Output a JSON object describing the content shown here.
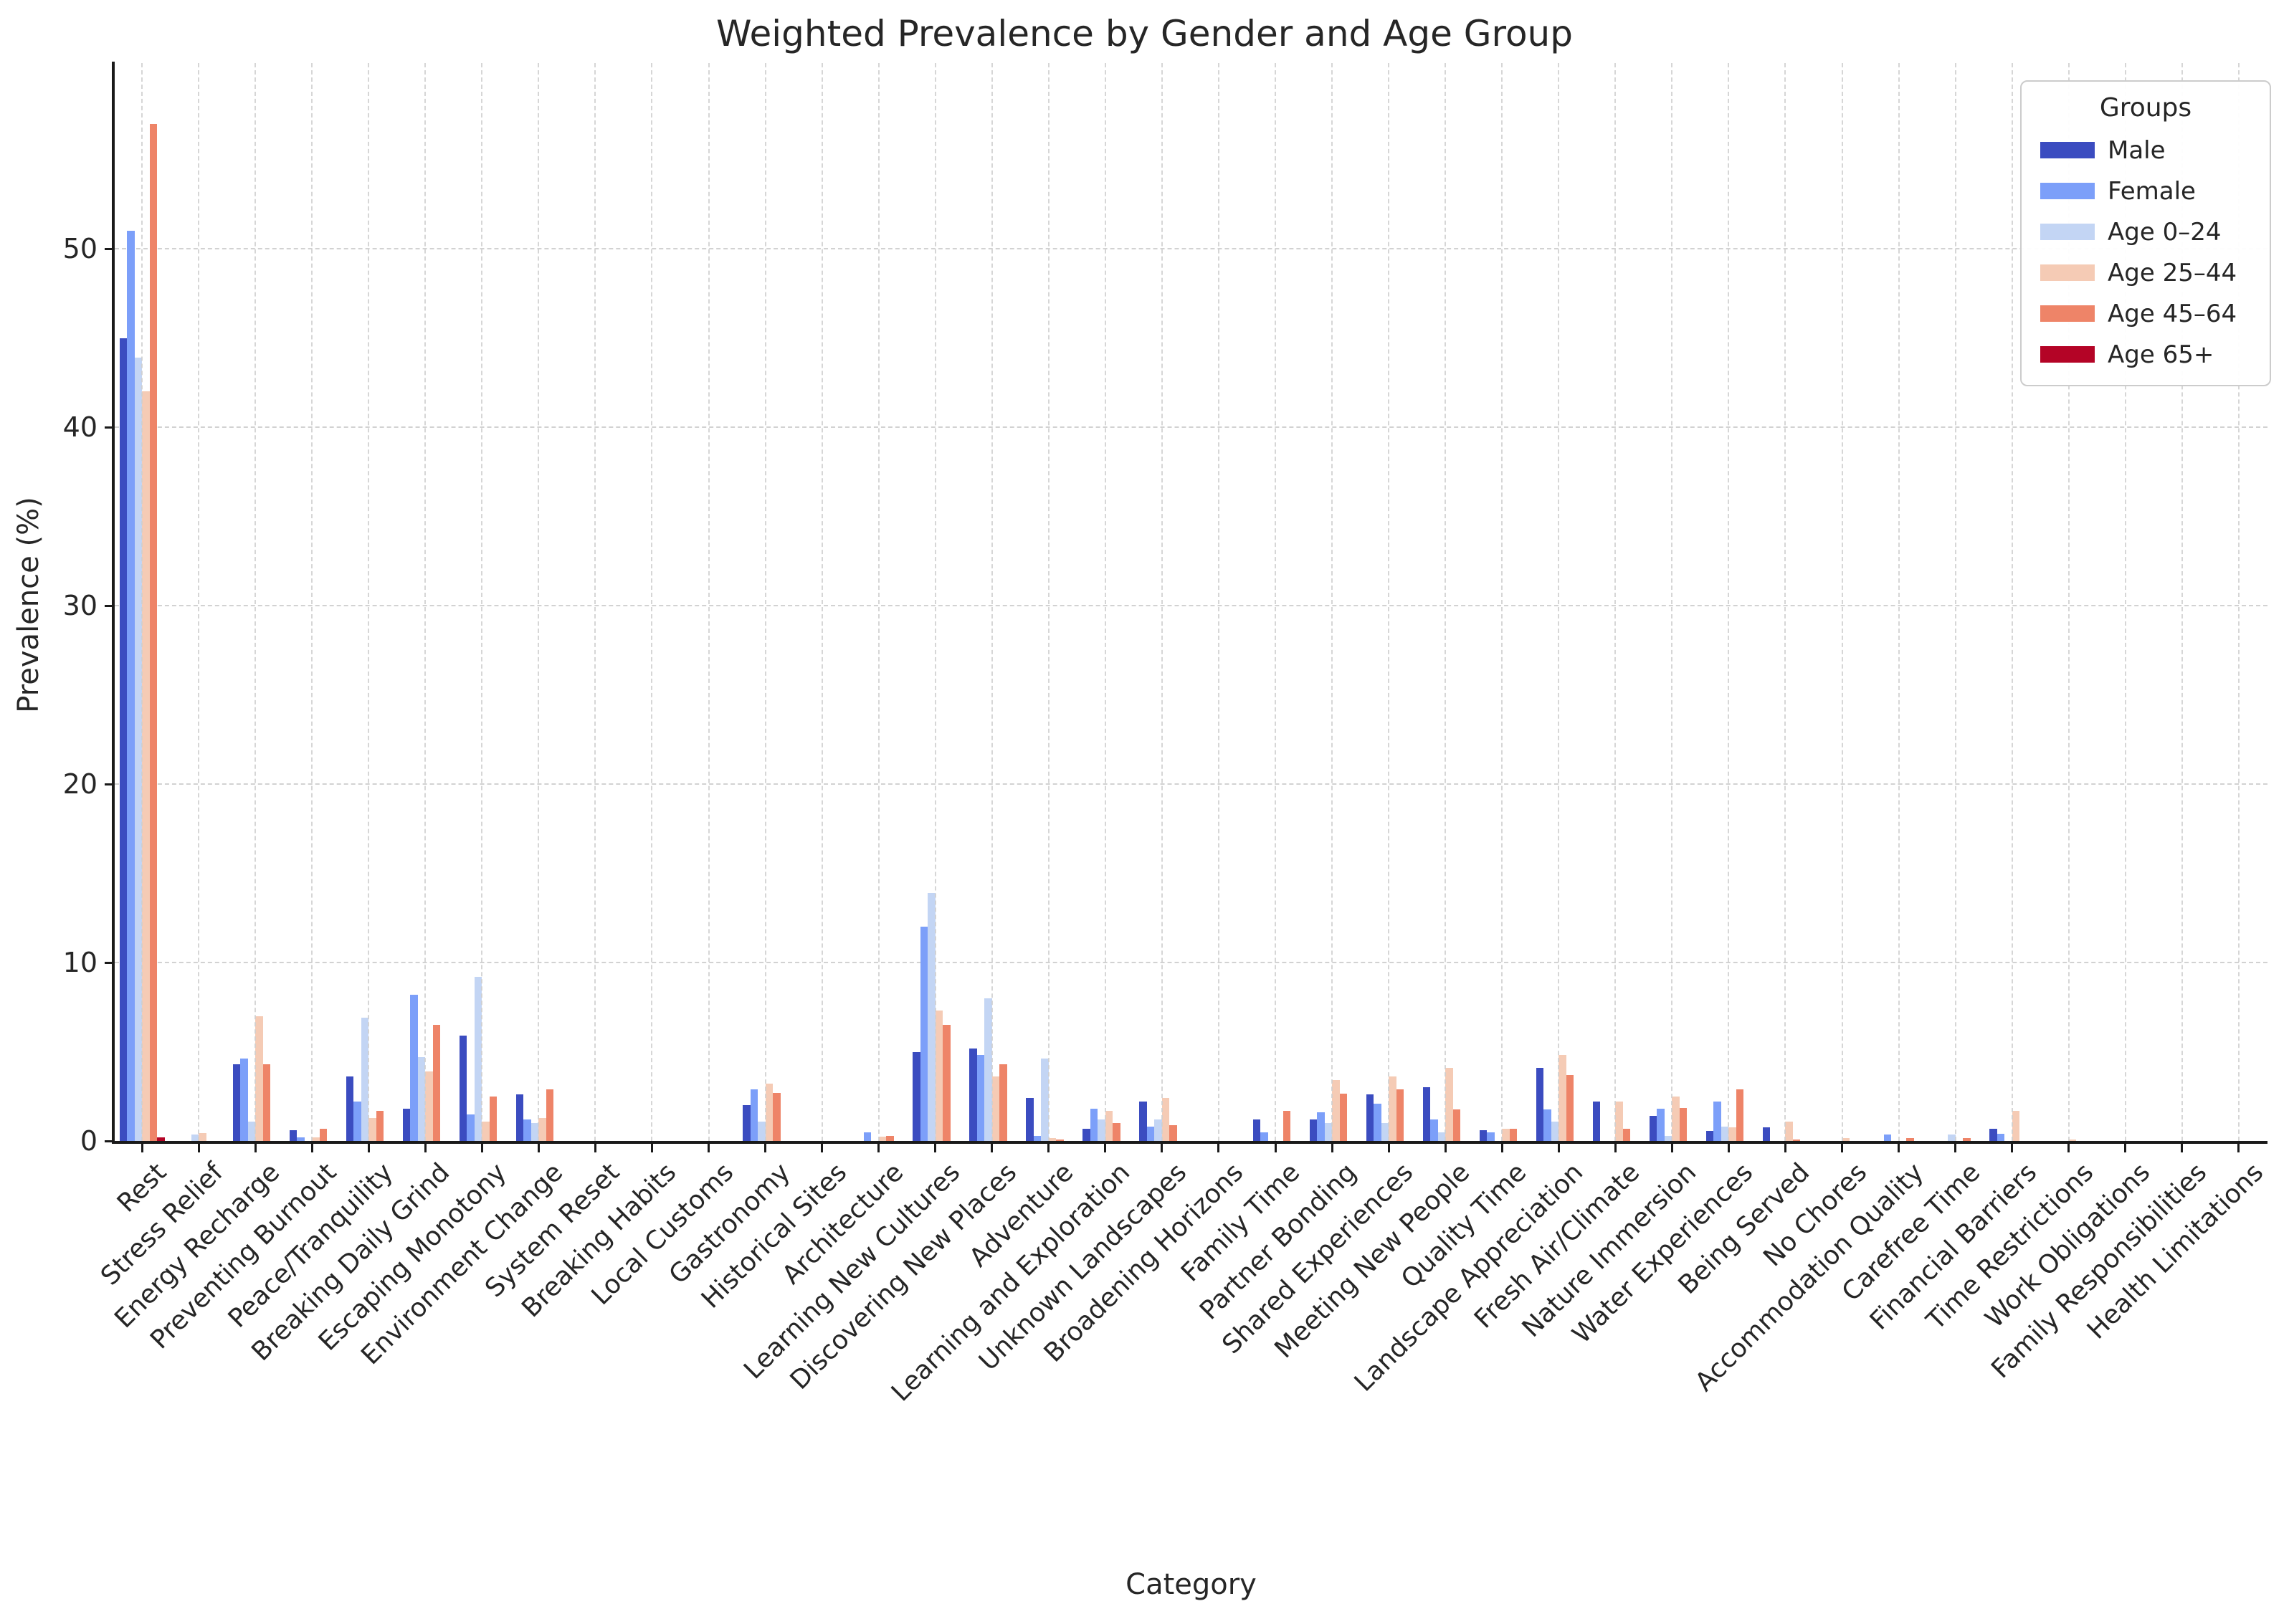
{
  "chart_data": {
    "type": "bar",
    "title": "Weighted Prevalence by Gender and Age Group",
    "xlabel": "Category",
    "ylabel": "Prevalence (%)",
    "legend_title": "Groups",
    "legend_position": "upper right",
    "grid": "dashed",
    "ylim": [
      0,
      60
    ],
    "yticks": [
      0,
      10,
      20,
      30,
      40,
      50
    ],
    "categories": [
      "Rest",
      "Stress Relief",
      "Energy Recharge",
      "Preventing Burnout",
      "Peace/Tranquility",
      "Breaking Daily Grind",
      "Escaping Monotony",
      "Environment Change",
      "System Reset",
      "Breaking Habits",
      "Local Customs",
      "Gastronomy",
      "Historical Sites",
      "Architecture",
      "Learning New Cultures",
      "Discovering New Places",
      "Adventure",
      "Learning and Exploration",
      "Unknown Landscapes",
      "Broadening Horizons",
      "Family Time",
      "Partner Bonding",
      "Shared Experiences",
      "Meeting New People",
      "Quality Time",
      "Landscape Appreciation",
      "Fresh Air/Climate",
      "Nature Immersion",
      "Water Experiences",
      "Being Served",
      "No Chores",
      "Accommodation Quality",
      "Carefree Time",
      "Financial Barriers",
      "Time Restrictions",
      "Work Obligations",
      "Family Responsibilities",
      "Health Limitations"
    ],
    "series": [
      {
        "name": "Male",
        "color": "#3B4CC0",
        "values": [
          45.0,
          0,
          4.3,
          0.6,
          3.6,
          1.8,
          5.9,
          2.6,
          0,
          0,
          0,
          2.0,
          0,
          0,
          5.0,
          5.2,
          2.4,
          0.7,
          2.2,
          0,
          1.2,
          1.2,
          2.6,
          3.0,
          0.6,
          4.1,
          2.2,
          1.4,
          0.55,
          0.75,
          0,
          0,
          0,
          0.7,
          0,
          0,
          0,
          0
        ]
      },
      {
        "name": "Female",
        "color": "#7C9FF9",
        "values": [
          51.0,
          0,
          4.6,
          0.2,
          2.2,
          8.2,
          1.5,
          1.2,
          0,
          0,
          0,
          2.9,
          0,
          0.5,
          12.0,
          4.8,
          0.3,
          1.8,
          0.8,
          0,
          0.5,
          1.6,
          2.1,
          1.2,
          0.5,
          1.75,
          0,
          1.8,
          2.2,
          0,
          0,
          0.35,
          0,
          0.4,
          0,
          0,
          0,
          0
        ]
      },
      {
        "name": "Age 0–24",
        "color": "#C3D5F4",
        "values": [
          43.9,
          0.35,
          1.1,
          0,
          6.9,
          4.7,
          9.2,
          1.0,
          0,
          0,
          0,
          1.1,
          0,
          0,
          13.9,
          8.0,
          4.6,
          1.2,
          1.2,
          0,
          0,
          1.0,
          1.0,
          0.5,
          0,
          1.1,
          0,
          0.3,
          0.8,
          0,
          0,
          0,
          0.35,
          0,
          0,
          0,
          0,
          0
        ]
      },
      {
        "name": "Age 25–44",
        "color": "#F5CBB5",
        "values": [
          42.0,
          0.45,
          7.0,
          0.2,
          1.3,
          3.9,
          1.1,
          1.3,
          0,
          0,
          0,
          3.2,
          0,
          0.25,
          7.3,
          3.6,
          0.15,
          1.7,
          2.4,
          0,
          0,
          3.4,
          3.6,
          4.1,
          0.7,
          4.8,
          2.2,
          2.5,
          0.75,
          1.1,
          0.15,
          0,
          0,
          1.7,
          0.1,
          0,
          0,
          0
        ]
      },
      {
        "name": "Age 45–64",
        "color": "#EE8468",
        "values": [
          57.0,
          0,
          4.3,
          0.7,
          1.7,
          6.5,
          2.5,
          2.9,
          0,
          0,
          0,
          2.7,
          0,
          0.3,
          6.5,
          4.3,
          0.1,
          1.0,
          0.9,
          0,
          1.7,
          2.65,
          2.9,
          1.75,
          0.7,
          3.7,
          0.7,
          1.85,
          2.9,
          0.1,
          0,
          0.15,
          0.15,
          0,
          0,
          0,
          0,
          0
        ]
      },
      {
        "name": "Age 65+",
        "color": "#B40426",
        "values": [
          0.2,
          0,
          0,
          0,
          0,
          0,
          0,
          0,
          0,
          0,
          0,
          0,
          0,
          0,
          0,
          0,
          0,
          0,
          0,
          0,
          0,
          0,
          0,
          0,
          0,
          0,
          0,
          0,
          0,
          0,
          0,
          0,
          0,
          0,
          0,
          0,
          0,
          0
        ]
      }
    ]
  }
}
